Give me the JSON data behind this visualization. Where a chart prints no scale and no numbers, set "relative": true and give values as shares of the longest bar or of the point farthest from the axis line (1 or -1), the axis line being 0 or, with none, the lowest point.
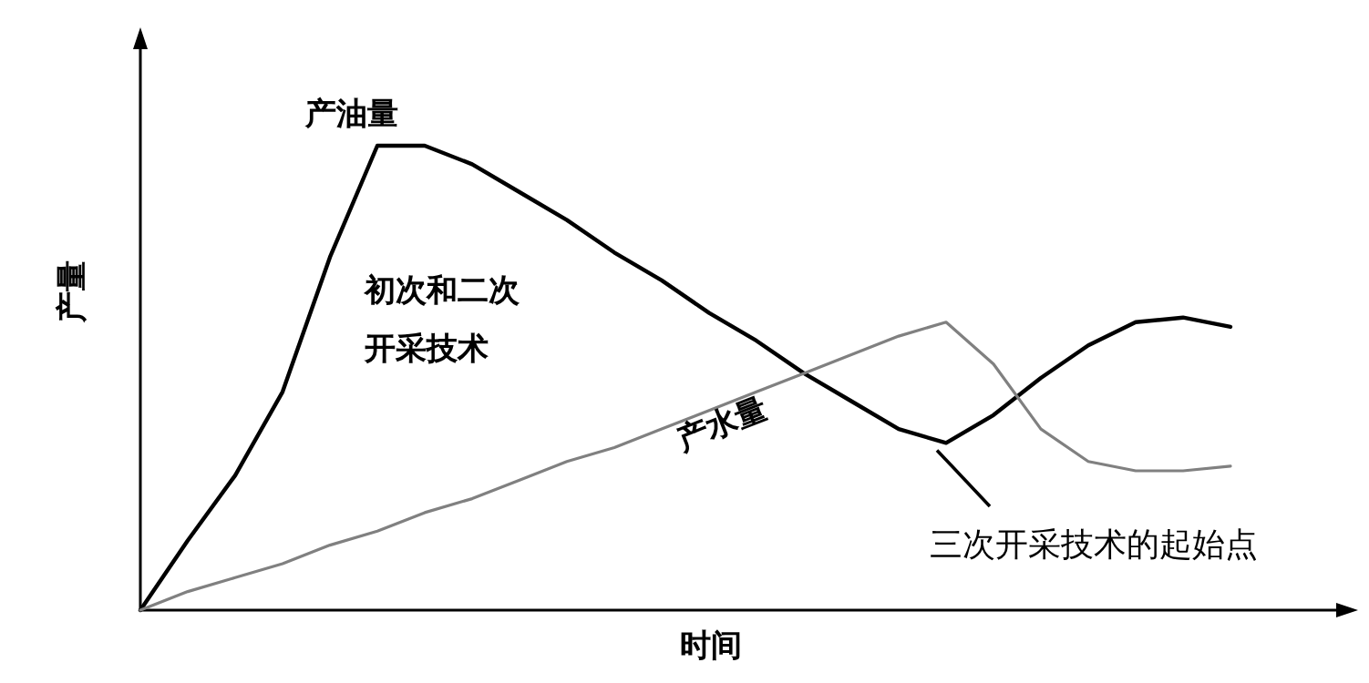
{
  "chart_data": {
    "type": "line",
    "relative": true,
    "xlabel": "时间",
    "ylabel": "产量",
    "categories": [
      null,
      null,
      null,
      null,
      null,
      null,
      null,
      null,
      null,
      null,
      null,
      null,
      null,
      null,
      null,
      null,
      null,
      null,
      null,
      null,
      null,
      null,
      null,
      null
    ],
    "series": [
      {
        "name": "产油量",
        "color": "#000000",
        "values": [
          0,
          0.15,
          0.29,
          0.47,
          0.76,
          1.0,
          1.0,
          0.96,
          0.9,
          0.84,
          0.77,
          0.71,
          0.64,
          0.58,
          0.51,
          0.45,
          0.39,
          0.36,
          0.42,
          0.5,
          0.57,
          0.62,
          0.63,
          0.61
        ]
      },
      {
        "name": "产水量",
        "color": "#808080",
        "values": [
          0,
          0.04,
          0.07,
          0.1,
          0.14,
          0.17,
          0.21,
          0.24,
          0.28,
          0.32,
          0.35,
          0.39,
          0.43,
          0.47,
          0.51,
          0.55,
          0.59,
          0.62,
          0.53,
          0.39,
          0.32,
          0.3,
          0.3,
          0.31
        ]
      }
    ],
    "annotations": [
      "初次和二次",
      "开采技术",
      "三次开采技术的起始点"
    ],
    "grid": false,
    "marker": "none",
    "line_style": "solid"
  }
}
